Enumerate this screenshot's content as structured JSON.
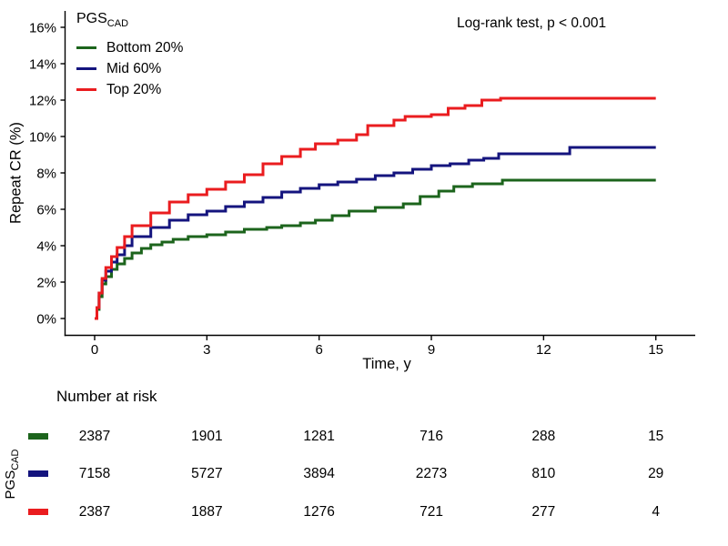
{
  "figure": {
    "ylabel": "Repeat CR (%)",
    "xlabel": "Time, y",
    "annotation": "Log-rank test, p < 0.001",
    "legend": {
      "title_main": "PGS",
      "title_sub": "CAD",
      "items": [
        {
          "label": "Bottom 20%",
          "color": "#1c641c"
        },
        {
          "label": "Mid 60%",
          "color": "#14147e"
        },
        {
          "label": "Top 20%",
          "color": "#ea1c1f"
        }
      ]
    }
  },
  "chart_data": {
    "type": "line",
    "step": true,
    "title": "",
    "xlabel": "Time, y",
    "ylabel": "Repeat CR (%)",
    "xlim": [
      0,
      15
    ],
    "ylim": [
      0,
      16
    ],
    "xticks": [
      0,
      3,
      6,
      9,
      12,
      15
    ],
    "ytick_values": [
      0,
      2,
      4,
      6,
      8,
      10,
      12,
      14,
      16
    ],
    "ytick_labels": [
      "0%",
      "2%",
      "4%",
      "6%",
      "8%",
      "10%",
      "12%",
      "14%",
      "16%"
    ],
    "grid": false,
    "legend_position": "inside-top-left",
    "legend_title": "PGS CAD",
    "annotation": "Log-rank test, p < 0.001",
    "units": "percent cumulative incidence",
    "series": [
      {
        "name": "Bottom 20%",
        "color": "#1c641c",
        "points": [
          [
            0,
            0
          ],
          [
            0.06,
            0.5
          ],
          [
            0.12,
            1.2
          ],
          [
            0.2,
            1.9
          ],
          [
            0.3,
            2.3
          ],
          [
            0.45,
            2.7
          ],
          [
            0.6,
            3.0
          ],
          [
            0.8,
            3.3
          ],
          [
            1.0,
            3.6
          ],
          [
            1.25,
            3.85
          ],
          [
            1.5,
            4.05
          ],
          [
            1.8,
            4.2
          ],
          [
            2.1,
            4.35
          ],
          [
            2.5,
            4.5
          ],
          [
            3.0,
            4.6
          ],
          [
            3.5,
            4.75
          ],
          [
            4.0,
            4.9
          ],
          [
            4.6,
            5.0
          ],
          [
            5.0,
            5.1
          ],
          [
            5.5,
            5.25
          ],
          [
            5.9,
            5.4
          ],
          [
            6.35,
            5.65
          ],
          [
            6.8,
            5.9
          ],
          [
            7.5,
            6.1
          ],
          [
            8.25,
            6.3
          ],
          [
            8.7,
            6.7
          ],
          [
            9.2,
            7.0
          ],
          [
            9.6,
            7.25
          ],
          [
            10.1,
            7.4
          ],
          [
            10.9,
            7.6
          ],
          [
            15,
            7.6
          ]
        ]
      },
      {
        "name": "Mid 60%",
        "color": "#14147e",
        "points": [
          [
            0,
            0
          ],
          [
            0.06,
            0.6
          ],
          [
            0.12,
            1.4
          ],
          [
            0.2,
            2.1
          ],
          [
            0.3,
            2.6
          ],
          [
            0.45,
            3.1
          ],
          [
            0.6,
            3.5
          ],
          [
            0.8,
            4.0
          ],
          [
            1.0,
            4.5
          ],
          [
            1.5,
            5.0
          ],
          [
            2.0,
            5.4
          ],
          [
            2.5,
            5.7
          ],
          [
            3.0,
            5.9
          ],
          [
            3.5,
            6.15
          ],
          [
            4.0,
            6.4
          ],
          [
            4.5,
            6.65
          ],
          [
            5.0,
            6.95
          ],
          [
            5.5,
            7.15
          ],
          [
            6.0,
            7.35
          ],
          [
            6.5,
            7.5
          ],
          [
            7.0,
            7.65
          ],
          [
            7.5,
            7.85
          ],
          [
            8.0,
            8.0
          ],
          [
            8.5,
            8.2
          ],
          [
            9.0,
            8.4
          ],
          [
            9.5,
            8.5
          ],
          [
            10.0,
            8.7
          ],
          [
            10.4,
            8.8
          ],
          [
            10.8,
            9.05
          ],
          [
            12.7,
            9.4
          ],
          [
            15,
            9.4
          ]
        ]
      },
      {
        "name": "Top 20%",
        "color": "#ea1c1f",
        "points": [
          [
            0,
            0
          ],
          [
            0.06,
            0.6
          ],
          [
            0.12,
            1.4
          ],
          [
            0.2,
            2.2
          ],
          [
            0.3,
            2.8
          ],
          [
            0.45,
            3.4
          ],
          [
            0.6,
            3.9
          ],
          [
            0.8,
            4.5
          ],
          [
            1.0,
            5.1
          ],
          [
            1.5,
            5.8
          ],
          [
            2.0,
            6.4
          ],
          [
            2.5,
            6.8
          ],
          [
            3.0,
            7.1
          ],
          [
            3.5,
            7.5
          ],
          [
            4.0,
            7.9
          ],
          [
            4.5,
            8.5
          ],
          [
            5.0,
            8.9
          ],
          [
            5.5,
            9.3
          ],
          [
            5.9,
            9.6
          ],
          [
            6.5,
            9.8
          ],
          [
            7.0,
            10.1
          ],
          [
            7.3,
            10.6
          ],
          [
            8.0,
            10.9
          ],
          [
            8.3,
            11.1
          ],
          [
            9.0,
            11.2
          ],
          [
            9.45,
            11.55
          ],
          [
            9.9,
            11.7
          ],
          [
            10.35,
            12.0
          ],
          [
            10.85,
            12.1
          ],
          [
            15,
            12.1
          ]
        ]
      }
    ]
  },
  "risk_table": {
    "title": "Number at risk",
    "axis_label_main": "PGS",
    "axis_label_sub": "CAD",
    "times": [
      0,
      3,
      6,
      9,
      12,
      15
    ],
    "rows": [
      {
        "name": "Bottom 20%",
        "color": "#1c641c",
        "counts": [
          "2387",
          "1901",
          "1281",
          "716",
          "288",
          "15"
        ]
      },
      {
        "name": "Mid 60%",
        "color": "#14147e",
        "counts": [
          "7158",
          "5727",
          "3894",
          "2273",
          "810",
          "29"
        ]
      },
      {
        "name": "Top 20%",
        "color": "#ea1c1f",
        "counts": [
          "2387",
          "1887",
          "1276",
          "721",
          "277",
          "4"
        ]
      }
    ]
  }
}
